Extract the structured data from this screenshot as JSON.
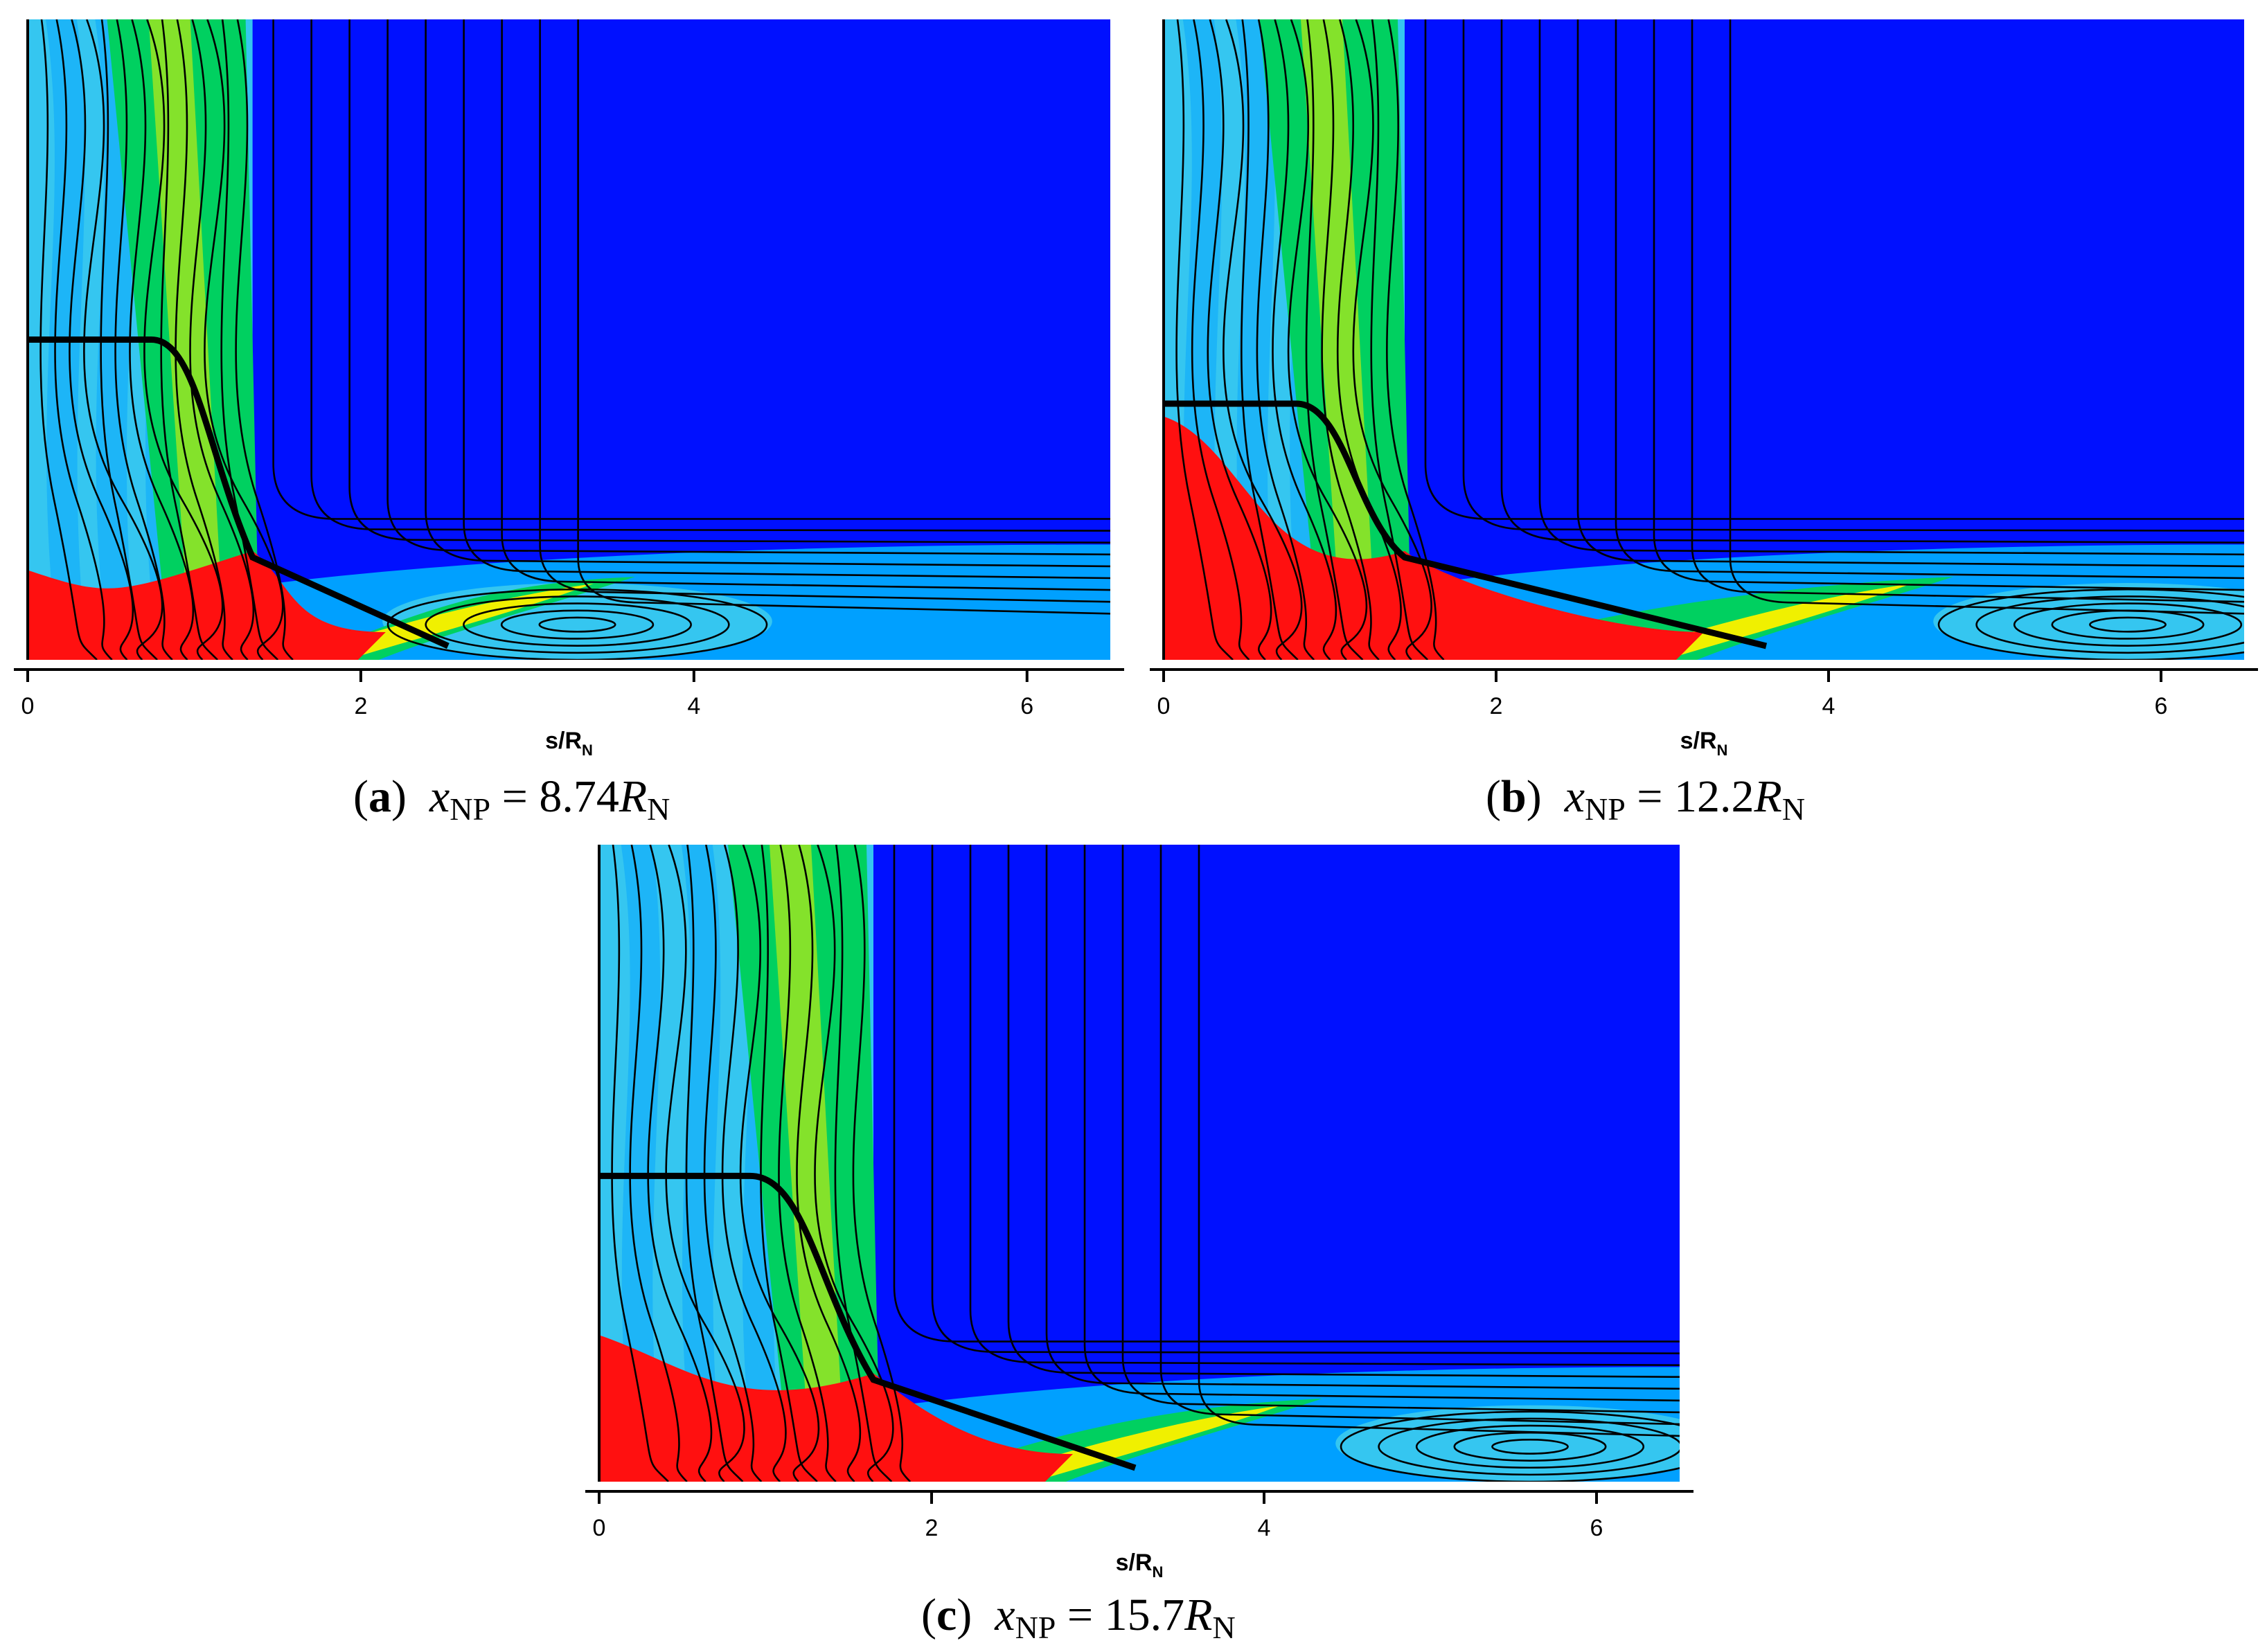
{
  "figure": {
    "panels": [
      {
        "id": "a",
        "caption": {
          "letter": "a",
          "lhs": "x",
          "lhs_sub": "NP",
          "equals": "=",
          "value": "8.74",
          "rhs": "R",
          "rhs_sub": "N"
        },
        "xlabel_main": "s/R",
        "xlabel_sub": "N",
        "x_ticks": [
          "0",
          "2",
          "4",
          "6"
        ]
      },
      {
        "id": "b",
        "caption": {
          "letter": "b",
          "lhs": "x",
          "lhs_sub": "NP",
          "equals": "=",
          "value": "12.2",
          "rhs": "R",
          "rhs_sub": "N"
        },
        "xlabel_main": "s/R",
        "xlabel_sub": "N",
        "x_ticks": [
          "0",
          "2",
          "4",
          "6"
        ]
      },
      {
        "id": "c",
        "caption": {
          "letter": "c",
          "lhs": "x",
          "lhs_sub": "NP",
          "equals": "=",
          "value": "15.7",
          "rhs": "R",
          "rhs_sub": "N"
        },
        "xlabel_main": "s/R",
        "xlabel_sub": "N",
        "x_ticks": [
          "0",
          "2",
          "4",
          "6"
        ]
      }
    ]
  },
  "chart_data": [
    {
      "type": "heatmap",
      "panel": "a",
      "x_nose_position": "8.74 R_N",
      "xlabel": "s/R_N",
      "xlim": [
        0,
        6.5
      ],
      "x_ticks": [
        0,
        2,
        4,
        6
      ],
      "y_axis": "unlabeled",
      "colormap": [
        "#0010ff",
        "#00a0ff",
        "#35c6f0",
        "#00d060",
        "#f0f000",
        "#ff1010"
      ],
      "overlay": "black contour lines",
      "features": {
        "shock_front_x": 1.35,
        "hot_region_x": [
          0,
          1.9
        ],
        "boundary_layer_x": [
          1.35,
          6.5
        ],
        "recirculation_center_x": 3.3
      }
    },
    {
      "type": "heatmap",
      "panel": "b",
      "x_nose_position": "12.2 R_N",
      "xlabel": "s/R_N",
      "xlim": [
        0,
        6.5
      ],
      "x_ticks": [
        0,
        2,
        4,
        6
      ],
      "y_axis": "unlabeled",
      "colormap": [
        "#0010ff",
        "#00a0ff",
        "#35c6f0",
        "#00d060",
        "#f0f000",
        "#ff1010"
      ],
      "overlay": "black contour lines",
      "features": {
        "shock_front_x": 1.45,
        "hot_region_x": [
          0,
          3.0
        ],
        "boundary_layer_x": [
          1.45,
          6.5
        ],
        "recirculation_center_x": 5.8
      }
    },
    {
      "type": "heatmap",
      "panel": "c",
      "x_nose_position": "15.7 R_N",
      "xlabel": "s/R_N",
      "xlim": [
        0,
        6.5
      ],
      "x_ticks": [
        0,
        2,
        4,
        6
      ],
      "y_axis": "unlabeled",
      "colormap": [
        "#0010ff",
        "#00a0ff",
        "#35c6f0",
        "#00d060",
        "#f0f000",
        "#ff1010"
      ],
      "overlay": "black contour lines",
      "features": {
        "shock_front_x": 1.65,
        "hot_region_x": [
          0,
          2.6
        ],
        "boundary_layer_x": [
          1.65,
          6.5
        ],
        "recirculation_center_x": 5.6
      }
    }
  ]
}
